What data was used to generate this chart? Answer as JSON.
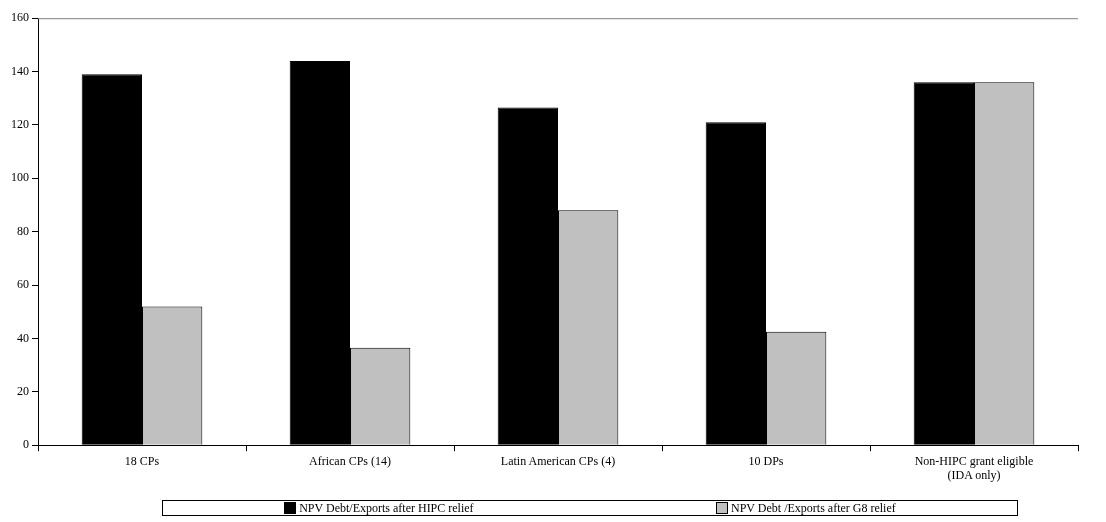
{
  "chart_data": {
    "type": "bar",
    "categories": [
      "18 CPs",
      "African CPs (14)",
      "Latin American CPs (4)",
      "10 DPs",
      "Non-HIPC grant eligible\n(IDA only)"
    ],
    "series": [
      {
        "name": "NPV Debt/Exports after HIPC relief",
        "color": "#000000",
        "values": [
          139,
          144,
          126.5,
          121,
          136
        ]
      },
      {
        "name": "NPV Debt /Exports after G8 relief",
        "color": "#c0c0c0",
        "values": [
          52,
          36.5,
          88,
          42.5,
          136
        ]
      }
    ],
    "ylim": [
      0,
      160
    ],
    "yticks": [
      0,
      20,
      40,
      60,
      80,
      100,
      120,
      140,
      160
    ],
    "grid": false,
    "legend": "bottom"
  }
}
